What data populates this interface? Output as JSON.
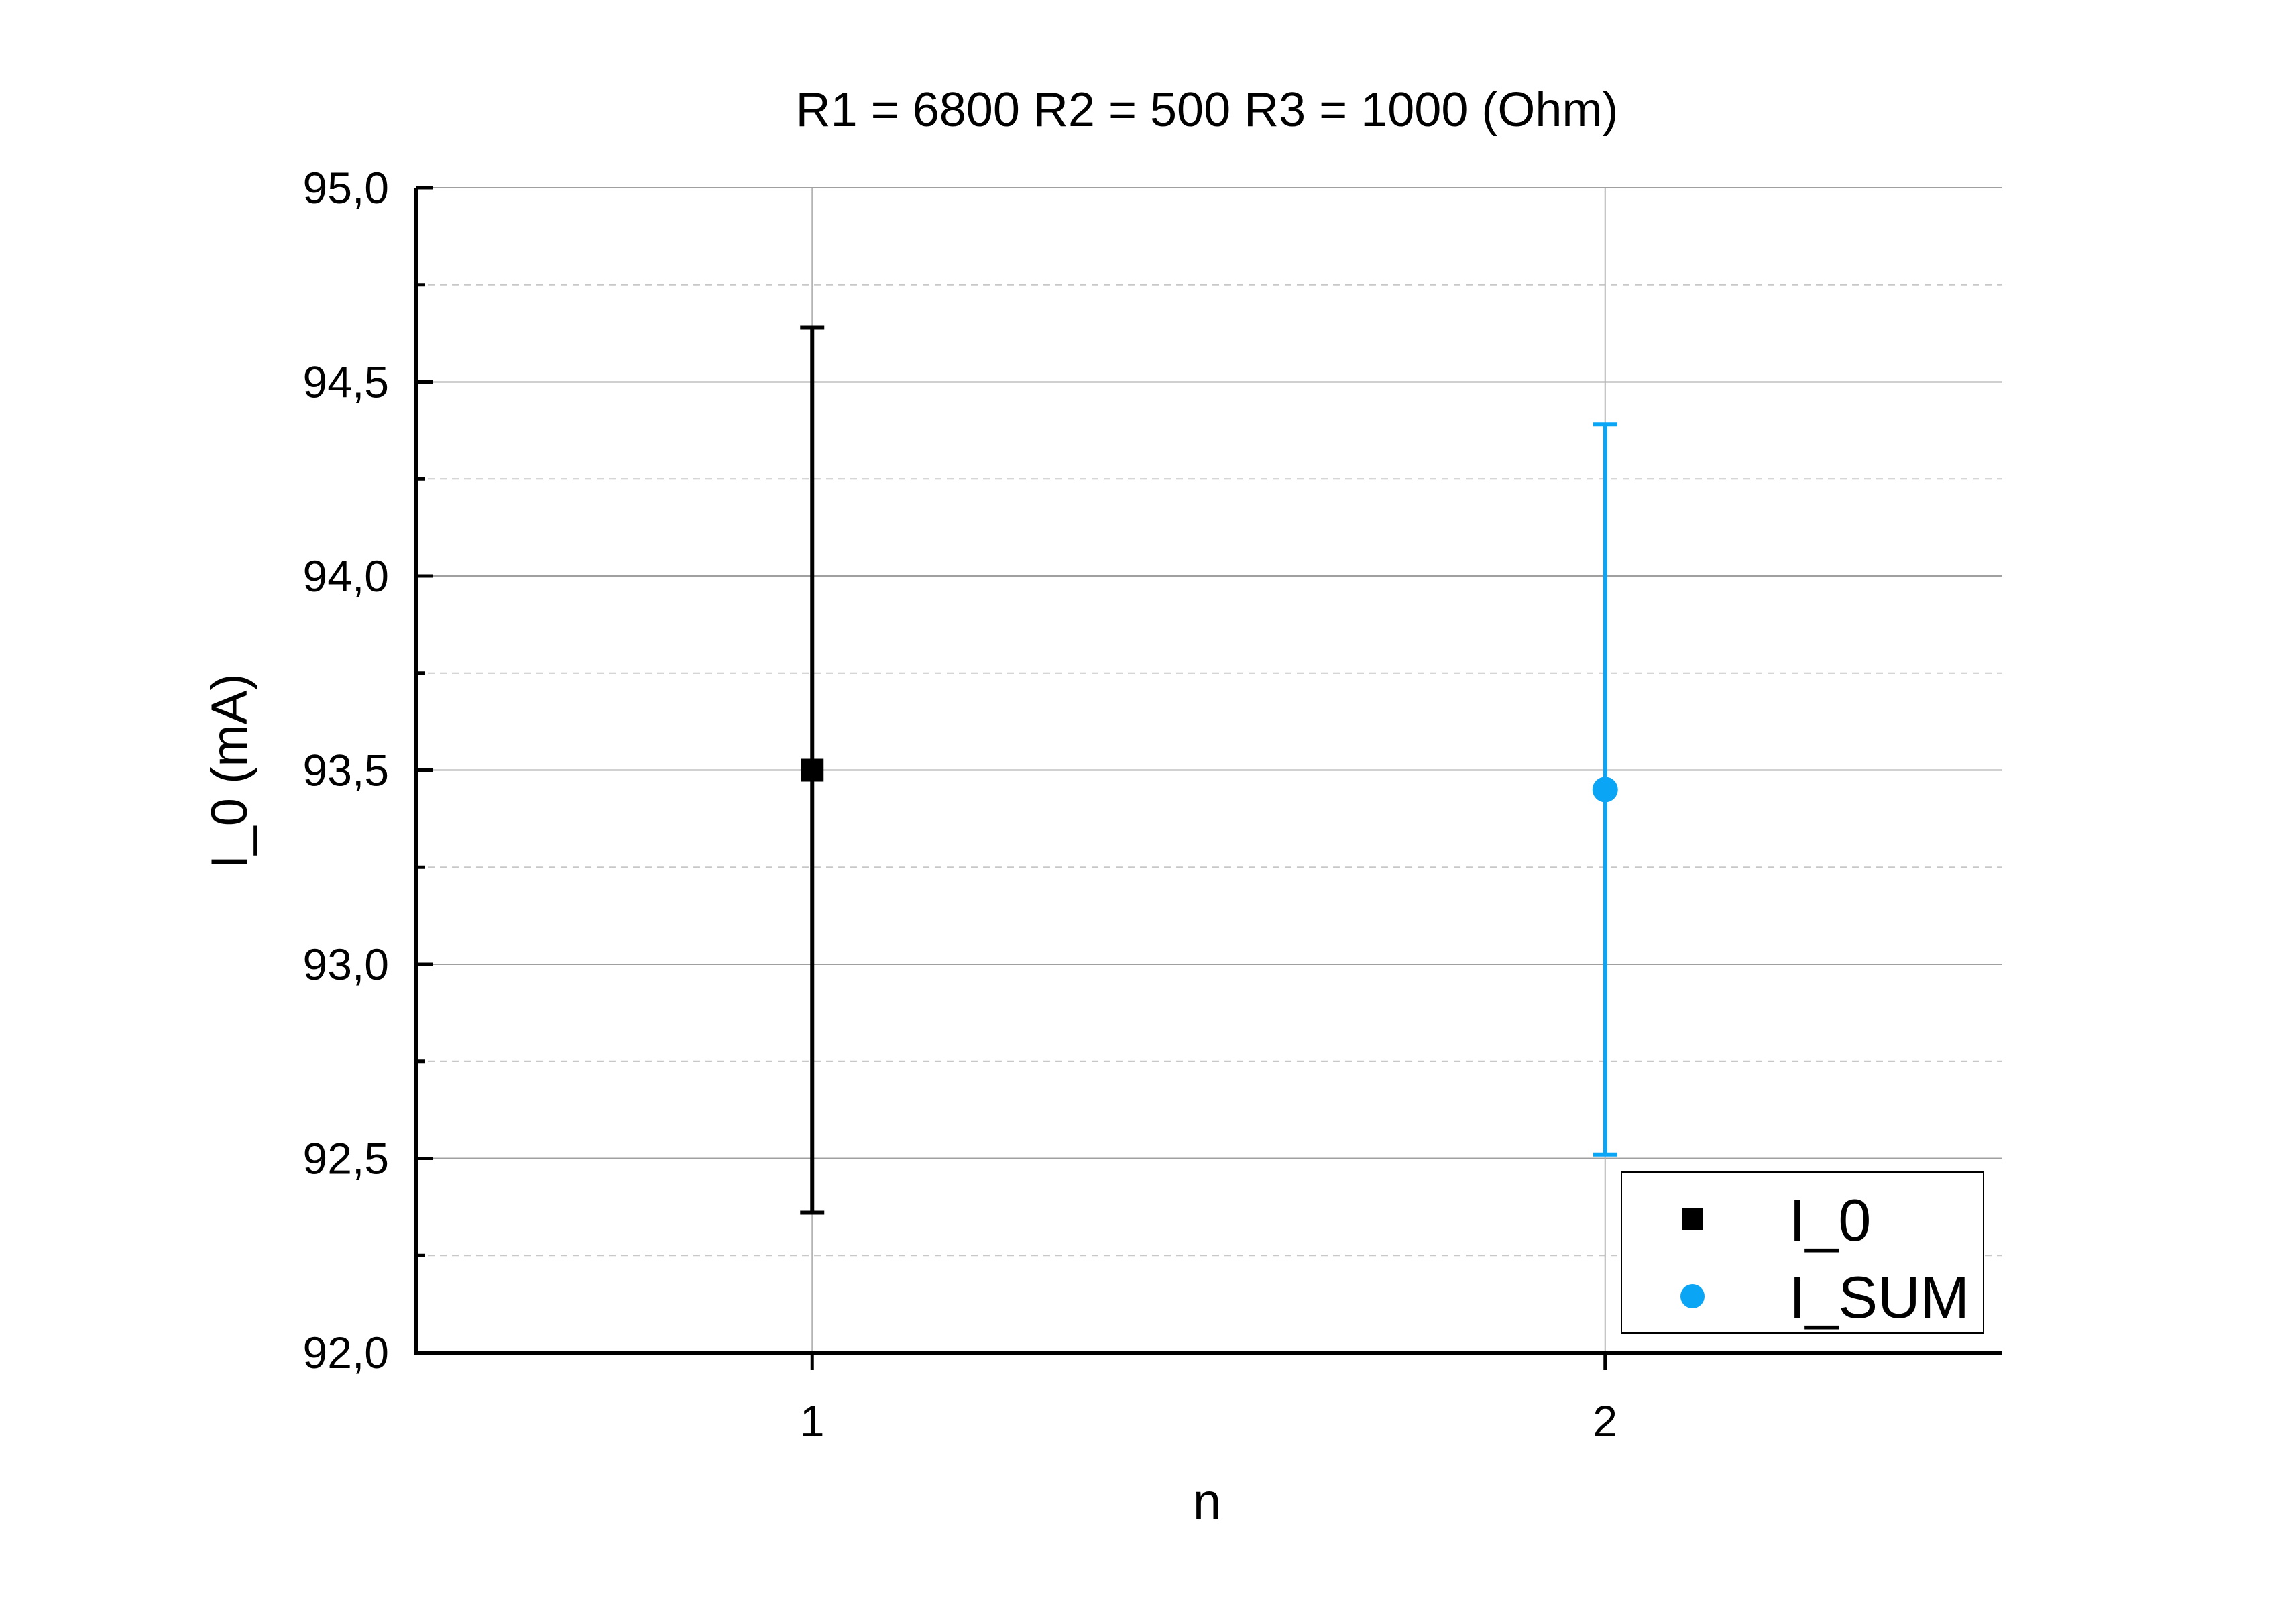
{
  "chart_data": {
    "type": "scatter",
    "title": "R1 = 6800 R2 = 500 R3 = 1000 (Ohm)",
    "xlabel": "n",
    "ylabel": "I_0 (mA)",
    "xlim": [
      0.5,
      2.5
    ],
    "ylim": [
      92.0,
      95.0
    ],
    "x_ticks": [
      "1",
      "2"
    ],
    "y_ticks": [
      "92,0",
      "92,5",
      "93,0",
      "93,5",
      "94,0",
      "94,5",
      "95,0"
    ],
    "grid": true,
    "legend_position": "bottom-right",
    "series": [
      {
        "name": "I_0",
        "marker": "square",
        "color": "#000000",
        "x": [
          1
        ],
        "y": [
          93.5
        ],
        "error": [
          1.14
        ]
      },
      {
        "name": "I_SUM",
        "marker": "circle",
        "color": "#0aa5f5",
        "x": [
          2
        ],
        "y": [
          93.45
        ],
        "error": [
          0.94
        ]
      }
    ]
  }
}
